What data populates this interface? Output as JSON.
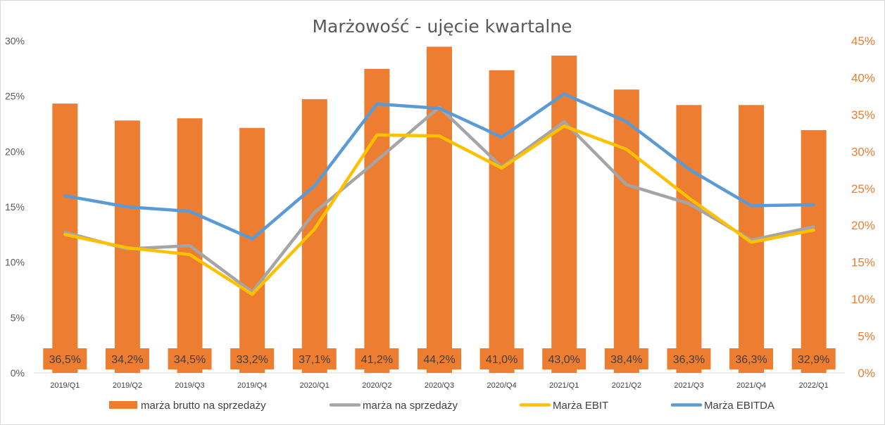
{
  "chart_data": {
    "type": "bar",
    "title": "Marżowość - ujęcie kwartalne",
    "categories": [
      "2019/Q1",
      "2019/Q2",
      "2019/Q3",
      "2019/Q4",
      "2020/Q1",
      "2020/Q2",
      "2020/Q3",
      "2020/Q4",
      "2021/Q1",
      "2021/Q2",
      "2021/Q3",
      "2021/Q4",
      "2022/Q1"
    ],
    "y_left": {
      "ylim": [
        0,
        30
      ],
      "ticks": [
        "0%",
        "5%",
        "10%",
        "15%",
        "20%",
        "25%",
        "30%"
      ],
      "tick_values": [
        0,
        5,
        10,
        15,
        20,
        25,
        30
      ]
    },
    "y_right": {
      "ylim": [
        0,
        45
      ],
      "ticks": [
        "0%",
        "5%",
        "10%",
        "15%",
        "20%",
        "25%",
        "30%",
        "35%",
        "40%",
        "45%"
      ],
      "tick_values": [
        0,
        5,
        10,
        15,
        20,
        25,
        30,
        35,
        40,
        45
      ]
    },
    "legend_position": "bottom",
    "grid": false,
    "series": [
      {
        "name": "marża brutto na sprzedaży",
        "type": "bar",
        "axis": "right",
        "color": "#ed7d31",
        "values": [
          36.5,
          34.2,
          34.5,
          33.2,
          37.1,
          41.2,
          44.2,
          41.0,
          43.0,
          38.4,
          36.3,
          36.3,
          32.9
        ],
        "labels": [
          "36,5%",
          "34,2%",
          "34,5%",
          "33,2%",
          "37,1%",
          "41,2%",
          "44,2%",
          "41,0%",
          "43,0%",
          "38,4%",
          "36,3%",
          "36,3%",
          "32,9%"
        ]
      },
      {
        "name": "marża na sprzedaży",
        "type": "line",
        "axis": "left",
        "color": "#a5a5a5",
        "values": [
          12.7,
          11.2,
          11.5,
          7.3,
          14.5,
          19.2,
          24.0,
          18.6,
          22.7,
          17.0,
          15.3,
          12.0,
          13.2
        ]
      },
      {
        "name": "Marża EBIT",
        "type": "line",
        "axis": "left",
        "color": "#ffc000",
        "values": [
          12.5,
          11.3,
          10.7,
          7.1,
          13.0,
          21.5,
          21.4,
          18.5,
          22.3,
          20.2,
          15.8,
          11.8,
          12.9
        ]
      },
      {
        "name": "Marża EBITDA",
        "type": "line",
        "axis": "left",
        "color": "#5b9bd5",
        "values": [
          16.0,
          15.0,
          14.6,
          12.1,
          16.9,
          24.3,
          23.9,
          21.3,
          25.2,
          22.7,
          18.4,
          15.1,
          15.2
        ]
      }
    ]
  }
}
